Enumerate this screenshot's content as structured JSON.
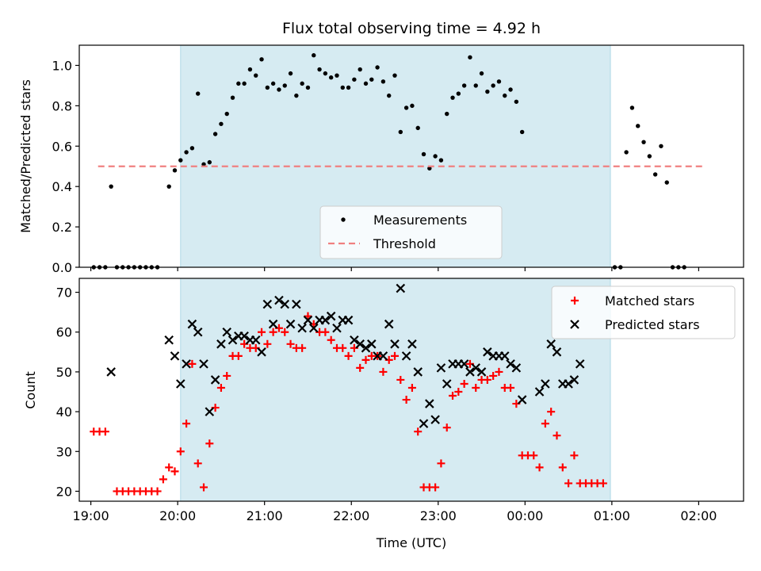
{
  "chart_data": [
    {
      "type": "scatter",
      "title": "Flux total observing time = 4.92 h",
      "xlabel": "",
      "ylabel": "Matched/Predicted stars",
      "xlim": [
        "18:52",
        "02:31"
      ],
      "ylim": [
        0,
        1.1
      ],
      "yticks": [
        "0.0",
        "0.2",
        "0.4",
        "0.6",
        "0.8",
        "1.0"
      ],
      "xticks": [
        "19:00",
        "20:00",
        "21:00",
        "22:00",
        "23:00",
        "00:00",
        "01:00",
        "02:00"
      ],
      "tick_labels_shown": false,
      "observing_window": [
        "20:02",
        "00:59"
      ],
      "shade_color": "#add8e6",
      "series": [
        {
          "name": "Measurements",
          "color": "#000000",
          "marker": "dot",
          "points": [
            [
              "19:02",
              0
            ],
            [
              "19:06",
              0
            ],
            [
              "19:10",
              0
            ],
            [
              "19:14",
              0.4
            ],
            [
              "19:18",
              0
            ],
            [
              "19:22",
              0
            ],
            [
              "19:26",
              0
            ],
            [
              "19:30",
              0
            ],
            [
              "19:34",
              0
            ],
            [
              "19:38",
              0
            ],
            [
              "19:42",
              0
            ],
            [
              "19:46",
              0
            ],
            [
              "19:54",
              0.4
            ],
            [
              "19:58",
              0.48
            ],
            [
              "20:02",
              0.53
            ],
            [
              "20:06",
              0.57
            ],
            [
              "20:10",
              0.59
            ],
            [
              "20:14",
              0.86
            ],
            [
              "20:18",
              0.51
            ],
            [
              "20:22",
              0.52
            ],
            [
              "20:26",
              0.66
            ],
            [
              "20:30",
              0.71
            ],
            [
              "20:34",
              0.76
            ],
            [
              "20:38",
              0.84
            ],
            [
              "20:42",
              0.91
            ],
            [
              "20:46",
              0.91
            ],
            [
              "20:50",
              0.98
            ],
            [
              "20:54",
              0.95
            ],
            [
              "20:58",
              1.03
            ],
            [
              "21:02",
              0.89
            ],
            [
              "21:06",
              0.91
            ],
            [
              "21:10",
              0.88
            ],
            [
              "21:14",
              0.9
            ],
            [
              "21:18",
              0.96
            ],
            [
              "21:22",
              0.85
            ],
            [
              "21:26",
              0.91
            ],
            [
              "21:30",
              0.89
            ],
            [
              "21:34",
              1.05
            ],
            [
              "21:38",
              0.98
            ],
            [
              "21:42",
              0.96
            ],
            [
              "21:46",
              0.94
            ],
            [
              "21:50",
              0.95
            ],
            [
              "21:54",
              0.89
            ],
            [
              "21:58",
              0.89
            ],
            [
              "22:02",
              0.93
            ],
            [
              "22:06",
              0.98
            ],
            [
              "22:10",
              0.91
            ],
            [
              "22:14",
              0.93
            ],
            [
              "22:18",
              0.99
            ],
            [
              "22:22",
              0.92
            ],
            [
              "22:26",
              0.85
            ],
            [
              "22:30",
              0.95
            ],
            [
              "22:34",
              0.67
            ],
            [
              "22:38",
              0.79
            ],
            [
              "22:42",
              0.8
            ],
            [
              "22:46",
              0.69
            ],
            [
              "22:50",
              0.56
            ],
            [
              "22:54",
              0.49
            ],
            [
              "22:58",
              0.55
            ],
            [
              "23:02",
              0.53
            ],
            [
              "23:06",
              0.76
            ],
            [
              "23:10",
              0.84
            ],
            [
              "23:14",
              0.86
            ],
            [
              "23:18",
              0.9
            ],
            [
              "23:22",
              1.04
            ],
            [
              "23:26",
              0.9
            ],
            [
              "23:30",
              0.96
            ],
            [
              "23:34",
              0.87
            ],
            [
              "23:38",
              0.9
            ],
            [
              "23:42",
              0.92
            ],
            [
              "23:46",
              0.85
            ],
            [
              "23:50",
              0.88
            ],
            [
              "23:54",
              0.82
            ],
            [
              "23:58",
              0.67
            ],
            [
              "01:02",
              0
            ],
            [
              "01:06",
              0
            ],
            [
              "01:10",
              0.57
            ],
            [
              "01:14",
              0.79
            ],
            [
              "01:18",
              0.7
            ],
            [
              "01:22",
              0.62
            ],
            [
              "01:26",
              0.55
            ],
            [
              "01:30",
              0.46
            ],
            [
              "01:34",
              0.6
            ],
            [
              "01:38",
              0.42
            ],
            [
              "01:42",
              0
            ],
            [
              "01:46",
              0
            ],
            [
              "01:50",
              0
            ]
          ]
        },
        {
          "name": "Threshold",
          "color": "#f08080",
          "style": "dashed",
          "points": [
            [
              "19:05",
              0.5
            ],
            [
              "02:05",
              0.5
            ]
          ]
        }
      ],
      "legend": {
        "placement": "lower center"
      }
    },
    {
      "type": "scatter",
      "title": "",
      "xlabel": "Time (UTC)",
      "ylabel": "Count",
      "xlim": [
        "18:52",
        "02:31"
      ],
      "ylim": [
        17.5,
        73.5
      ],
      "yticks": [
        "20",
        "30",
        "40",
        "50",
        "60",
        "70"
      ],
      "xticks": [
        "19:00",
        "20:00",
        "21:00",
        "22:00",
        "23:00",
        "00:00",
        "01:00",
        "02:00"
      ],
      "observing_window": [
        "20:02",
        "00:59"
      ],
      "shade_color": "#add8e6",
      "series": [
        {
          "name": "Matched stars",
          "color": "#ff0000",
          "marker": "plus",
          "points": [
            [
              "19:02",
              35
            ],
            [
              "19:06",
              35
            ],
            [
              "19:10",
              35
            ],
            [
              "19:18",
              20
            ],
            [
              "19:22",
              20
            ],
            [
              "19:26",
              20
            ],
            [
              "19:30",
              20
            ],
            [
              "19:34",
              20
            ],
            [
              "19:38",
              20
            ],
            [
              "19:42",
              20
            ],
            [
              "19:46",
              20
            ],
            [
              "19:50",
              23
            ],
            [
              "19:54",
              26
            ],
            [
              "19:58",
              25
            ],
            [
              "20:02",
              30
            ],
            [
              "20:06",
              37
            ],
            [
              "20:10",
              52
            ],
            [
              "20:14",
              27
            ],
            [
              "20:18",
              21
            ],
            [
              "20:22",
              32
            ],
            [
              "20:26",
              41
            ],
            [
              "20:30",
              46
            ],
            [
              "20:34",
              49
            ],
            [
              "20:38",
              54
            ],
            [
              "20:42",
              54
            ],
            [
              "20:46",
              57
            ],
            [
              "20:50",
              56
            ],
            [
              "20:54",
              56
            ],
            [
              "20:58",
              60
            ],
            [
              "21:02",
              57
            ],
            [
              "21:06",
              60
            ],
            [
              "21:10",
              61
            ],
            [
              "21:14",
              60
            ],
            [
              "21:18",
              57
            ],
            [
              "21:22",
              56
            ],
            [
              "21:26",
              56
            ],
            [
              "21:30",
              64
            ],
            [
              "21:34",
              62
            ],
            [
              "21:38",
              60
            ],
            [
              "21:42",
              60
            ],
            [
              "21:46",
              58
            ],
            [
              "21:50",
              56
            ],
            [
              "21:54",
              56
            ],
            [
              "21:58",
              54
            ],
            [
              "22:02",
              56
            ],
            [
              "22:06",
              51
            ],
            [
              "22:10",
              53
            ],
            [
              "22:14",
              54
            ],
            [
              "22:18",
              54
            ],
            [
              "22:22",
              50
            ],
            [
              "22:26",
              53
            ],
            [
              "22:30",
              54
            ],
            [
              "22:34",
              48
            ],
            [
              "22:38",
              43
            ],
            [
              "22:42",
              46
            ],
            [
              "22:46",
              35
            ],
            [
              "22:50",
              21
            ],
            [
              "22:54",
              21
            ],
            [
              "22:58",
              21
            ],
            [
              "23:02",
              27
            ],
            [
              "23:06",
              36
            ],
            [
              "23:10",
              44
            ],
            [
              "23:14",
              45
            ],
            [
              "23:18",
              47
            ],
            [
              "23:22",
              52
            ],
            [
              "23:26",
              46
            ],
            [
              "23:30",
              48
            ],
            [
              "23:34",
              48
            ],
            [
              "23:38",
              49
            ],
            [
              "23:42",
              50
            ],
            [
              "23:46",
              46
            ],
            [
              "23:50",
              46
            ],
            [
              "23:54",
              42
            ],
            [
              "23:58",
              29
            ],
            [
              "00:02",
              29
            ],
            [
              "00:06",
              29
            ],
            [
              "00:10",
              26
            ],
            [
              "00:14",
              37
            ],
            [
              "00:18",
              40
            ],
            [
              "00:22",
              34
            ],
            [
              "00:26",
              26
            ],
            [
              "00:30",
              22
            ],
            [
              "00:34",
              29
            ],
            [
              "00:38",
              22
            ],
            [
              "00:42",
              22
            ],
            [
              "00:46",
              22
            ],
            [
              "00:50",
              22
            ],
            [
              "00:54",
              22
            ]
          ]
        },
        {
          "name": "Predicted stars",
          "color": "#000000",
          "marker": "x",
          "points": [
            [
              "19:14",
              50
            ],
            [
              "19:54",
              58
            ],
            [
              "19:58",
              54
            ],
            [
              "20:02",
              47
            ],
            [
              "20:06",
              52
            ],
            [
              "20:10",
              62
            ],
            [
              "20:14",
              60
            ],
            [
              "20:18",
              52
            ],
            [
              "20:22",
              40
            ],
            [
              "20:26",
              48
            ],
            [
              "20:30",
              57
            ],
            [
              "20:34",
              60
            ],
            [
              "20:38",
              58
            ],
            [
              "20:42",
              59
            ],
            [
              "20:46",
              59
            ],
            [
              "20:50",
              58
            ],
            [
              "20:54",
              58
            ],
            [
              "20:58",
              55
            ],
            [
              "21:02",
              67
            ],
            [
              "21:06",
              62
            ],
            [
              "21:10",
              68
            ],
            [
              "21:14",
              67
            ],
            [
              "21:18",
              62
            ],
            [
              "21:22",
              67
            ],
            [
              "21:26",
              61
            ],
            [
              "21:30",
              63
            ],
            [
              "21:34",
              61
            ],
            [
              "21:38",
              63
            ],
            [
              "21:42",
              63
            ],
            [
              "21:46",
              64
            ],
            [
              "21:50",
              61
            ],
            [
              "21:54",
              63
            ],
            [
              "21:58",
              63
            ],
            [
              "22:02",
              58
            ],
            [
              "22:06",
              57
            ],
            [
              "22:10",
              56
            ],
            [
              "22:14",
              57
            ],
            [
              "22:18",
              54
            ],
            [
              "22:22",
              54
            ],
            [
              "22:26",
              62
            ],
            [
              "22:30",
              57
            ],
            [
              "22:34",
              71
            ],
            [
              "22:38",
              54
            ],
            [
              "22:42",
              57
            ],
            [
              "22:46",
              50
            ],
            [
              "22:50",
              37
            ],
            [
              "22:54",
              42
            ],
            [
              "22:58",
              38
            ],
            [
              "23:02",
              51
            ],
            [
              "23:06",
              47
            ],
            [
              "23:10",
              52
            ],
            [
              "23:14",
              52
            ],
            [
              "23:18",
              52
            ],
            [
              "23:22",
              50
            ],
            [
              "23:26",
              51
            ],
            [
              "23:30",
              50
            ],
            [
              "23:34",
              55
            ],
            [
              "23:38",
              54
            ],
            [
              "23:42",
              54
            ],
            [
              "23:46",
              54
            ],
            [
              "23:50",
              52
            ],
            [
              "23:54",
              51
            ],
            [
              "23:58",
              43
            ],
            [
              "00:10",
              45
            ],
            [
              "00:14",
              47
            ],
            [
              "00:18",
              57
            ],
            [
              "00:22",
              55
            ],
            [
              "00:26",
              47
            ],
            [
              "00:30",
              47
            ],
            [
              "00:34",
              48
            ],
            [
              "00:38",
              52
            ]
          ]
        }
      ],
      "legend": {
        "placement": "upper right"
      }
    }
  ]
}
